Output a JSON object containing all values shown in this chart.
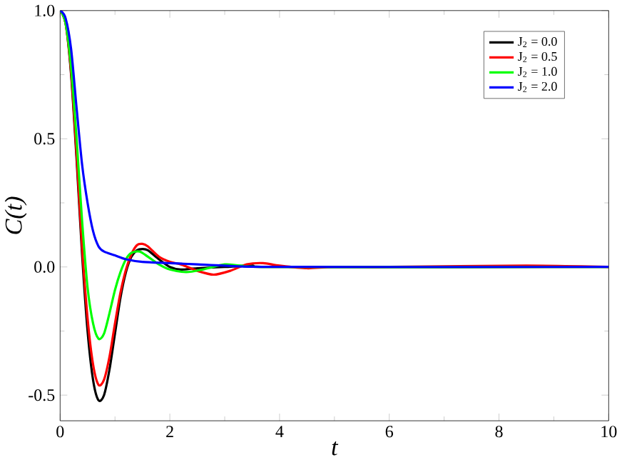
{
  "chart_data": {
    "type": "line",
    "xlabel": "t",
    "ylabel": "C(t)",
    "xlim": [
      0,
      10
    ],
    "ylim": [
      -0.6,
      1.0
    ],
    "xticks": [
      0,
      2,
      4,
      6,
      8,
      10
    ],
    "yticks": [
      {
        "value": -0.5,
        "label": "-0.5"
      },
      {
        "value": 0,
        "label": "0.0"
      },
      {
        "value": 0.5,
        "label": "0.5"
      },
      {
        "value": 1.0,
        "label": "1.0"
      }
    ],
    "grid": false,
    "legend": "top right",
    "marker": "none",
    "line_style": "solid",
    "series": [
      {
        "name": "J$_{2}$ = 0.0",
        "color": "#000000",
        "x": [
          0,
          0.1,
          0.2,
          0.3,
          0.4,
          0.5,
          0.6,
          0.7,
          0.8,
          0.9,
          1.0,
          1.1,
          1.2,
          1.3,
          1.4,
          1.5,
          1.6,
          1.8,
          2.0,
          2.2,
          2.5,
          3.0,
          3.5,
          4.0,
          10
        ],
        "values": [
          1,
          0.95,
          0.75,
          0.42,
          0.05,
          -0.25,
          -0.44,
          -0.52,
          -0.5,
          -0.4,
          -0.26,
          -0.12,
          -0.02,
          0.04,
          0.065,
          0.07,
          0.065,
          0.03,
          0.0,
          -0.01,
          -0.005,
          0.0,
          0.005,
          0.0,
          0.0
        ]
      },
      {
        "name": "J$_{2}$ = 0.5",
        "color": "#ff0000",
        "x": [
          0,
          0.1,
          0.2,
          0.3,
          0.4,
          0.5,
          0.6,
          0.7,
          0.8,
          0.9,
          1.0,
          1.1,
          1.2,
          1.3,
          1.4,
          1.5,
          1.6,
          1.8,
          2.0,
          2.2,
          2.5,
          2.8,
          3.1,
          3.4,
          3.7,
          4.0,
          4.5,
          5.0,
          6.0,
          8.5,
          10
        ],
        "values": [
          1,
          0.95,
          0.76,
          0.44,
          0.08,
          -0.2,
          -0.38,
          -0.46,
          -0.44,
          -0.35,
          -0.22,
          -0.1,
          -0.01,
          0.05,
          0.085,
          0.09,
          0.08,
          0.04,
          0.02,
          0.01,
          -0.015,
          -0.03,
          -0.015,
          0.01,
          0.015,
          0.005,
          -0.005,
          0.0,
          0.0,
          0.005,
          0.0
        ]
      },
      {
        "name": "J$_{2}$ = 1.0",
        "color": "#00ff00",
        "x": [
          0,
          0.1,
          0.2,
          0.3,
          0.4,
          0.5,
          0.6,
          0.7,
          0.8,
          0.9,
          1.0,
          1.1,
          1.2,
          1.3,
          1.45,
          1.6,
          1.8,
          2.0,
          2.3,
          2.6,
          3.0,
          3.3,
          4.0,
          10
        ],
        "values": [
          1,
          0.95,
          0.78,
          0.5,
          0.18,
          -0.08,
          -0.22,
          -0.28,
          -0.26,
          -0.18,
          -0.09,
          -0.02,
          0.03,
          0.055,
          0.06,
          0.04,
          0.01,
          -0.01,
          -0.02,
          -0.01,
          0.01,
          0.005,
          0.0,
          0.0
        ]
      },
      {
        "name": "J$_{2}$ = 2.0",
        "color": "#0000ff",
        "x": [
          0,
          0.1,
          0.2,
          0.3,
          0.4,
          0.5,
          0.6,
          0.7,
          0.8,
          1.0,
          1.2,
          1.5,
          2.0,
          2.5,
          3.0,
          4.0,
          10
        ],
        "values": [
          1,
          0.97,
          0.85,
          0.62,
          0.4,
          0.25,
          0.14,
          0.08,
          0.06,
          0.045,
          0.03,
          0.02,
          0.015,
          0.01,
          0.005,
          0.0,
          0.0
        ]
      }
    ]
  }
}
